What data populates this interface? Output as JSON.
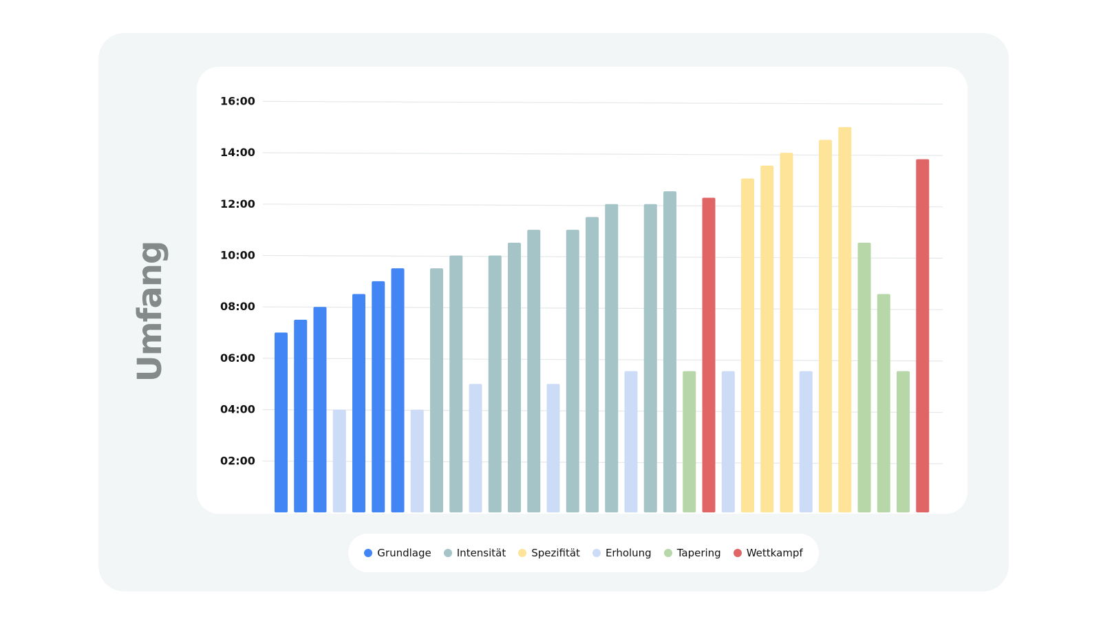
{
  "chart_data": {
    "type": "bar",
    "ylabel": "Umfang",
    "yticks": [
      "02:00",
      "04:00",
      "06:00",
      "08:00",
      "10:00",
      "12:00",
      "14:00",
      "16:00"
    ],
    "ylim_hours": [
      0,
      16
    ],
    "grid": true,
    "legend_position": "bottom-center",
    "phases": [
      {
        "key": "grundlage",
        "name": "Grundlage",
        "color": "#4285f4"
      },
      {
        "key": "intensitaet",
        "name": "Intensität",
        "color": "#a5c4c8"
      },
      {
        "key": "spezifitaet",
        "name": "Spezifität",
        "color": "#fde498"
      },
      {
        "key": "erholung",
        "name": "Erholung",
        "color": "#cddcf6"
      },
      {
        "key": "tapering",
        "name": "Tapering",
        "color": "#b7d7a8"
      },
      {
        "key": "wettkampf",
        "name": "Wettkampf",
        "color": "#e06666"
      }
    ],
    "bars": [
      {
        "phase": "grundlage",
        "hours": 7.0
      },
      {
        "phase": "grundlage",
        "hours": 7.5
      },
      {
        "phase": "grundlage",
        "hours": 8.0
      },
      {
        "phase": "erholung",
        "hours": 4.0
      },
      {
        "phase": "grundlage",
        "hours": 8.5
      },
      {
        "phase": "grundlage",
        "hours": 9.0
      },
      {
        "phase": "grundlage",
        "hours": 9.5
      },
      {
        "phase": "erholung",
        "hours": 4.0
      },
      {
        "phase": "intensitaet",
        "hours": 9.5
      },
      {
        "phase": "intensitaet",
        "hours": 10.0
      },
      {
        "phase": "erholung",
        "hours": 5.0
      },
      {
        "phase": "intensitaet",
        "hours": 10.0
      },
      {
        "phase": "intensitaet",
        "hours": 10.5
      },
      {
        "phase": "intensitaet",
        "hours": 11.0
      },
      {
        "phase": "erholung",
        "hours": 5.0
      },
      {
        "phase": "intensitaet",
        "hours": 11.0
      },
      {
        "phase": "intensitaet",
        "hours": 11.5
      },
      {
        "phase": "intensitaet",
        "hours": 12.0
      },
      {
        "phase": "erholung",
        "hours": 5.5
      },
      {
        "phase": "intensitaet",
        "hours": 12.0
      },
      {
        "phase": "intensitaet",
        "hours": 12.5
      },
      {
        "phase": "tapering",
        "hours": 5.5
      },
      {
        "phase": "wettkampf",
        "hours": 12.25
      },
      {
        "phase": "erholung",
        "hours": 5.5
      },
      {
        "phase": "spezifitaet",
        "hours": 13.0
      },
      {
        "phase": "spezifitaet",
        "hours": 13.5
      },
      {
        "phase": "spezifitaet",
        "hours": 14.0
      },
      {
        "phase": "erholung",
        "hours": 5.5
      },
      {
        "phase": "spezifitaet",
        "hours": 14.5
      },
      {
        "phase": "spezifitaet",
        "hours": 15.0
      },
      {
        "phase": "tapering",
        "hours": 10.5
      },
      {
        "phase": "tapering",
        "hours": 8.5
      },
      {
        "phase": "tapering",
        "hours": 5.5
      },
      {
        "phase": "wettkampf",
        "hours": 13.75
      }
    ]
  }
}
